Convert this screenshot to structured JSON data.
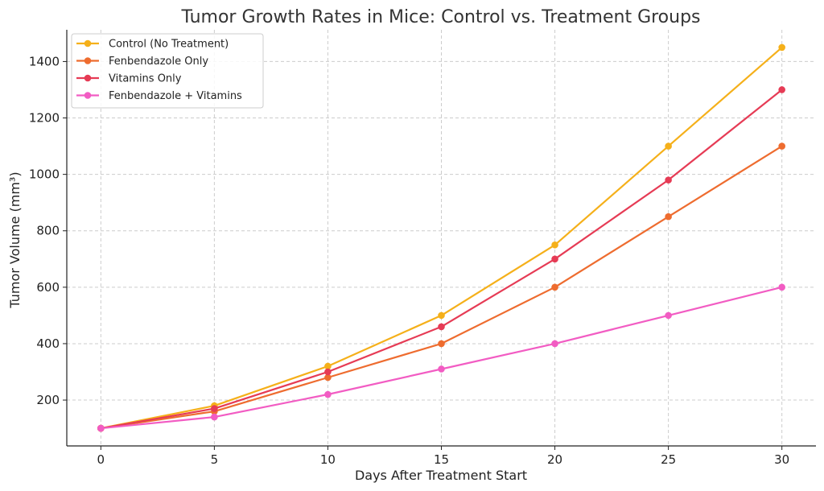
{
  "chart_data": {
    "type": "line",
    "title": "Tumor Growth Rates in Mice: Control vs. Treatment Groups",
    "xlabel": "Days After Treatment Start",
    "ylabel": "Tumor Volume (mm³)",
    "x": [
      0,
      5,
      10,
      15,
      20,
      25,
      30
    ],
    "xticks": [
      0,
      5,
      10,
      15,
      20,
      25,
      30
    ],
    "yticks": [
      200,
      400,
      600,
      800,
      1000,
      1200,
      1400
    ],
    "xlim": [
      -1.5,
      31.5
    ],
    "ylim": [
      37.5,
      1512.5
    ],
    "grid": true,
    "legend_position": "top-left",
    "series": [
      {
        "name": "Control (No Treatment)",
        "color": "#f5b01a",
        "values": [
          100,
          180,
          320,
          500,
          750,
          1100,
          1450
        ]
      },
      {
        "name": "Fenbendazole Only",
        "color": "#ee6c2f",
        "values": [
          100,
          160,
          280,
          400,
          600,
          850,
          1100
        ]
      },
      {
        "name": "Vitamins Only",
        "color": "#e63b55",
        "values": [
          100,
          170,
          300,
          460,
          700,
          980,
          1300
        ]
      },
      {
        "name": "Fenbendazole + Vitamins",
        "color": "#f25cc3",
        "values": [
          100,
          140,
          220,
          310,
          400,
          500,
          600
        ]
      }
    ]
  }
}
